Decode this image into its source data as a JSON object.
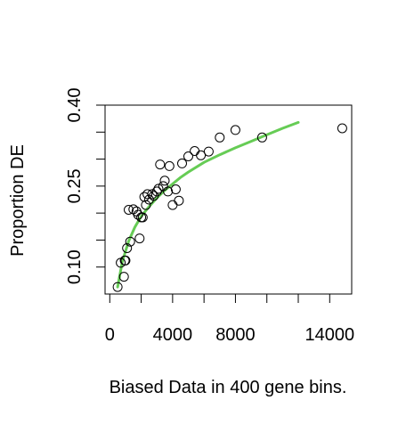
{
  "chart_data": {
    "type": "scatter",
    "title": "",
    "xlabel": "Biased Data in 400 gene bins.",
    "ylabel": "Proportion DE",
    "xlim": [
      -300,
      15400
    ],
    "ylim": [
      0.05,
      0.4
    ],
    "x_ticks": [
      0,
      4000,
      8000,
      14000
    ],
    "x_ticks_unlabeled": [
      2000,
      6000,
      10000,
      12000
    ],
    "y_ticks": [
      0.1,
      0.25,
      0.4
    ],
    "y_ticks_unlabeled": [
      0.15,
      0.2,
      0.3,
      0.35
    ],
    "x_tick_labels": [
      "0",
      "4000",
      "8000",
      "14000"
    ],
    "y_tick_labels": [
      "0.10",
      "0.25",
      "0.40"
    ],
    "grid": false,
    "legend": "none",
    "point_style": "open-circle",
    "colors": {
      "points": "#000000",
      "fit_line": "#66cc55",
      "axes": "#000000"
    },
    "series": [
      {
        "values": [
          [
            500,
            0.063
          ],
          [
            700,
            0.108
          ],
          [
            900,
            0.082
          ],
          [
            950,
            0.112
          ],
          [
            1000,
            0.112
          ],
          [
            1100,
            0.135
          ],
          [
            1300,
            0.147
          ],
          [
            1200,
            0.206
          ],
          [
            1500,
            0.207
          ],
          [
            1700,
            0.203
          ],
          [
            1800,
            0.197
          ],
          [
            2000,
            0.192
          ],
          [
            1900,
            0.153
          ],
          [
            2100,
            0.192
          ],
          [
            2200,
            0.23
          ],
          [
            2300,
            0.215
          ],
          [
            2400,
            0.235
          ],
          [
            2500,
            0.225
          ],
          [
            2700,
            0.235
          ],
          [
            2800,
            0.232
          ],
          [
            3000,
            0.24
          ],
          [
            3100,
            0.245
          ],
          [
            3200,
            0.29
          ],
          [
            3400,
            0.25
          ],
          [
            3500,
            0.26
          ],
          [
            3700,
            0.24
          ],
          [
            3800,
            0.287
          ],
          [
            4000,
            0.215
          ],
          [
            4200,
            0.244
          ],
          [
            4400,
            0.223
          ],
          [
            4600,
            0.292
          ],
          [
            5000,
            0.305
          ],
          [
            5400,
            0.315
          ],
          [
            5800,
            0.307
          ],
          [
            6300,
            0.314
          ],
          [
            7000,
            0.34
          ],
          [
            8000,
            0.354
          ],
          [
            9700,
            0.34
          ],
          [
            14800,
            0.357
          ]
        ]
      }
    ],
    "fit_curve": [
      [
        500,
        0.063
      ],
      [
        800,
        0.11
      ],
      [
        1200,
        0.148
      ],
      [
        1600,
        0.174
      ],
      [
        2000,
        0.194
      ],
      [
        2500,
        0.212
      ],
      [
        3000,
        0.228
      ],
      [
        3500,
        0.242
      ],
      [
        4000,
        0.254
      ],
      [
        4500,
        0.266
      ],
      [
        5000,
        0.276
      ],
      [
        6000,
        0.294
      ],
      [
        7000,
        0.308
      ],
      [
        8000,
        0.321
      ],
      [
        9000,
        0.333
      ],
      [
        10000,
        0.345
      ],
      [
        11000,
        0.357
      ],
      [
        12000,
        0.368
      ]
    ]
  }
}
